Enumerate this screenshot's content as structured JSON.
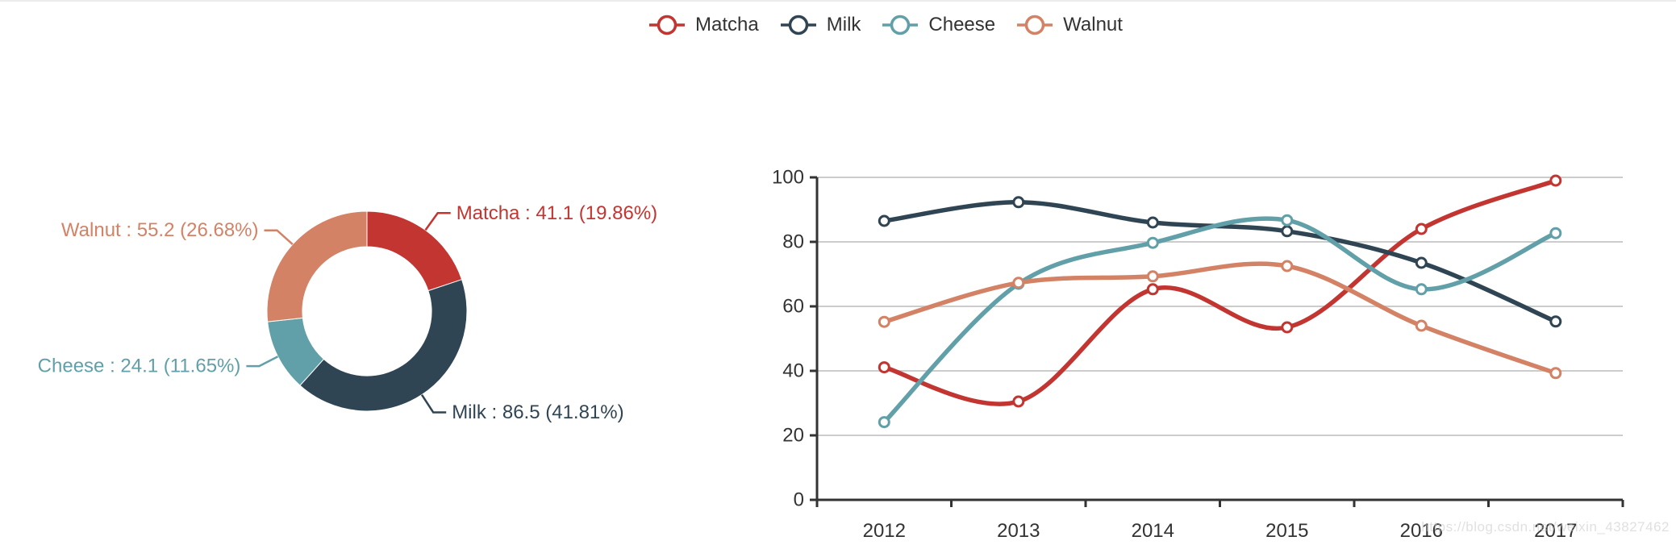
{
  "page": {
    "background": "#ffffff"
  },
  "legend": {
    "items": [
      {
        "label": "Matcha",
        "color": "#c23531"
      },
      {
        "label": "Milk",
        "color": "#2f4554"
      },
      {
        "label": "Cheese",
        "color": "#61a0a8"
      },
      {
        "label": "Walnut",
        "color": "#d48265"
      }
    ]
  },
  "watermark": {
    "text": "https://blog.csdn.net/weixin_43827462"
  },
  "colors": {
    "axis": "#333333",
    "grid": "#cccccc",
    "text": "#333333"
  },
  "chart_data": [
    {
      "type": "pie",
      "subtype": "donut",
      "title": "",
      "start_angle_deg": -90,
      "clockwise": true,
      "slices": [
        {
          "name": "Matcha",
          "value": 41.1,
          "percent": "19.86%",
          "label": "Matcha : 41.1 (19.86%)",
          "color": "#c23531"
        },
        {
          "name": "Milk",
          "value": 86.5,
          "percent": "41.81%",
          "label": "Milk : 86.5 (41.81%)",
          "color": "#2f4554"
        },
        {
          "name": "Cheese",
          "value": 24.1,
          "percent": "11.65%",
          "label": "Cheese : 24.1 (11.65%)",
          "color": "#61a0a8"
        },
        {
          "name": "Walnut",
          "value": 55.2,
          "percent": "26.68%",
          "label": "Walnut : 55.2 (26.68%)",
          "color": "#d48265"
        }
      ]
    },
    {
      "type": "line",
      "title": "",
      "smooth": true,
      "grid": true,
      "legend_position": "top-center",
      "xlabel": "",
      "ylabel": "",
      "categories": [
        "2012",
        "2013",
        "2014",
        "2015",
        "2016",
        "2017"
      ],
      "ylim": [
        0,
        100
      ],
      "yticks": [
        0,
        20,
        40,
        60,
        80,
        100
      ],
      "series": [
        {
          "name": "Matcha",
          "color": "#c23531",
          "values": [
            41.1,
            30.5,
            65.3,
            53.5,
            84.0,
            99.0
          ]
        },
        {
          "name": "Milk",
          "color": "#2f4554",
          "values": [
            86.5,
            92.3,
            86.0,
            83.3,
            73.5,
            55.3
          ]
        },
        {
          "name": "Cheese",
          "color": "#61a0a8",
          "values": [
            24.1,
            67.0,
            79.7,
            86.7,
            65.3,
            82.7
          ]
        },
        {
          "name": "Walnut",
          "color": "#d48265",
          "values": [
            55.2,
            67.3,
            69.3,
            72.5,
            54.0,
            39.3
          ]
        }
      ]
    }
  ]
}
